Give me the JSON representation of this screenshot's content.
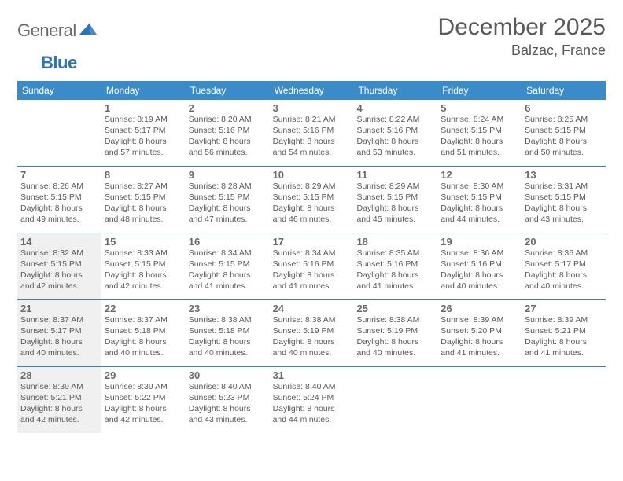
{
  "brand": {
    "part1": "General",
    "part2": "Blue"
  },
  "title": "December 2025",
  "location": "Balzac, France",
  "colors": {
    "header_bg": "#3b8bc8",
    "header_text": "#ffffff",
    "border": "#3b7fb5",
    "shaded": "#f0f0f0",
    "text": "#5a5a5a",
    "daynum": "#6a6a6a",
    "brand_blue": "#2b74b8"
  },
  "day_labels": [
    "Sunday",
    "Monday",
    "Tuesday",
    "Wednesday",
    "Thursday",
    "Friday",
    "Saturday"
  ],
  "weeks": [
    [
      {
        "n": "",
        "shaded": false,
        "sunrise": "",
        "sunset": "",
        "daylight": ""
      },
      {
        "n": "1",
        "shaded": false,
        "sunrise": "Sunrise: 8:19 AM",
        "sunset": "Sunset: 5:17 PM",
        "daylight": "Daylight: 8 hours and 57 minutes."
      },
      {
        "n": "2",
        "shaded": false,
        "sunrise": "Sunrise: 8:20 AM",
        "sunset": "Sunset: 5:16 PM",
        "daylight": "Daylight: 8 hours and 56 minutes."
      },
      {
        "n": "3",
        "shaded": false,
        "sunrise": "Sunrise: 8:21 AM",
        "sunset": "Sunset: 5:16 PM",
        "daylight": "Daylight: 8 hours and 54 minutes."
      },
      {
        "n": "4",
        "shaded": false,
        "sunrise": "Sunrise: 8:22 AM",
        "sunset": "Sunset: 5:16 PM",
        "daylight": "Daylight: 8 hours and 53 minutes."
      },
      {
        "n": "5",
        "shaded": false,
        "sunrise": "Sunrise: 8:24 AM",
        "sunset": "Sunset: 5:15 PM",
        "daylight": "Daylight: 8 hours and 51 minutes."
      },
      {
        "n": "6",
        "shaded": false,
        "sunrise": "Sunrise: 8:25 AM",
        "sunset": "Sunset: 5:15 PM",
        "daylight": "Daylight: 8 hours and 50 minutes."
      }
    ],
    [
      {
        "n": "7",
        "shaded": false,
        "sunrise": "Sunrise: 8:26 AM",
        "sunset": "Sunset: 5:15 PM",
        "daylight": "Daylight: 8 hours and 49 minutes."
      },
      {
        "n": "8",
        "shaded": false,
        "sunrise": "Sunrise: 8:27 AM",
        "sunset": "Sunset: 5:15 PM",
        "daylight": "Daylight: 8 hours and 48 minutes."
      },
      {
        "n": "9",
        "shaded": false,
        "sunrise": "Sunrise: 8:28 AM",
        "sunset": "Sunset: 5:15 PM",
        "daylight": "Daylight: 8 hours and 47 minutes."
      },
      {
        "n": "10",
        "shaded": false,
        "sunrise": "Sunrise: 8:29 AM",
        "sunset": "Sunset: 5:15 PM",
        "daylight": "Daylight: 8 hours and 46 minutes."
      },
      {
        "n": "11",
        "shaded": false,
        "sunrise": "Sunrise: 8:29 AM",
        "sunset": "Sunset: 5:15 PM",
        "daylight": "Daylight: 8 hours and 45 minutes."
      },
      {
        "n": "12",
        "shaded": false,
        "sunrise": "Sunrise: 8:30 AM",
        "sunset": "Sunset: 5:15 PM",
        "daylight": "Daylight: 8 hours and 44 minutes."
      },
      {
        "n": "13",
        "shaded": false,
        "sunrise": "Sunrise: 8:31 AM",
        "sunset": "Sunset: 5:15 PM",
        "daylight": "Daylight: 8 hours and 43 minutes."
      }
    ],
    [
      {
        "n": "14",
        "shaded": true,
        "sunrise": "Sunrise: 8:32 AM",
        "sunset": "Sunset: 5:15 PM",
        "daylight": "Daylight: 8 hours and 42 minutes."
      },
      {
        "n": "15",
        "shaded": false,
        "sunrise": "Sunrise: 8:33 AM",
        "sunset": "Sunset: 5:15 PM",
        "daylight": "Daylight: 8 hours and 42 minutes."
      },
      {
        "n": "16",
        "shaded": false,
        "sunrise": "Sunrise: 8:34 AM",
        "sunset": "Sunset: 5:15 PM",
        "daylight": "Daylight: 8 hours and 41 minutes."
      },
      {
        "n": "17",
        "shaded": false,
        "sunrise": "Sunrise: 8:34 AM",
        "sunset": "Sunset: 5:16 PM",
        "daylight": "Daylight: 8 hours and 41 minutes."
      },
      {
        "n": "18",
        "shaded": false,
        "sunrise": "Sunrise: 8:35 AM",
        "sunset": "Sunset: 5:16 PM",
        "daylight": "Daylight: 8 hours and 41 minutes."
      },
      {
        "n": "19",
        "shaded": false,
        "sunrise": "Sunrise: 8:36 AM",
        "sunset": "Sunset: 5:16 PM",
        "daylight": "Daylight: 8 hours and 40 minutes."
      },
      {
        "n": "20",
        "shaded": false,
        "sunrise": "Sunrise: 8:36 AM",
        "sunset": "Sunset: 5:17 PM",
        "daylight": "Daylight: 8 hours and 40 minutes."
      }
    ],
    [
      {
        "n": "21",
        "shaded": true,
        "sunrise": "Sunrise: 8:37 AM",
        "sunset": "Sunset: 5:17 PM",
        "daylight": "Daylight: 8 hours and 40 minutes."
      },
      {
        "n": "22",
        "shaded": false,
        "sunrise": "Sunrise: 8:37 AM",
        "sunset": "Sunset: 5:18 PM",
        "daylight": "Daylight: 8 hours and 40 minutes."
      },
      {
        "n": "23",
        "shaded": false,
        "sunrise": "Sunrise: 8:38 AM",
        "sunset": "Sunset: 5:18 PM",
        "daylight": "Daylight: 8 hours and 40 minutes."
      },
      {
        "n": "24",
        "shaded": false,
        "sunrise": "Sunrise: 8:38 AM",
        "sunset": "Sunset: 5:19 PM",
        "daylight": "Daylight: 8 hours and 40 minutes."
      },
      {
        "n": "25",
        "shaded": false,
        "sunrise": "Sunrise: 8:38 AM",
        "sunset": "Sunset: 5:19 PM",
        "daylight": "Daylight: 8 hours and 40 minutes."
      },
      {
        "n": "26",
        "shaded": false,
        "sunrise": "Sunrise: 8:39 AM",
        "sunset": "Sunset: 5:20 PM",
        "daylight": "Daylight: 8 hours and 41 minutes."
      },
      {
        "n": "27",
        "shaded": false,
        "sunrise": "Sunrise: 8:39 AM",
        "sunset": "Sunset: 5:21 PM",
        "daylight": "Daylight: 8 hours and 41 minutes."
      }
    ],
    [
      {
        "n": "28",
        "shaded": true,
        "sunrise": "Sunrise: 8:39 AM",
        "sunset": "Sunset: 5:21 PM",
        "daylight": "Daylight: 8 hours and 42 minutes."
      },
      {
        "n": "29",
        "shaded": false,
        "sunrise": "Sunrise: 8:39 AM",
        "sunset": "Sunset: 5:22 PM",
        "daylight": "Daylight: 8 hours and 42 minutes."
      },
      {
        "n": "30",
        "shaded": false,
        "sunrise": "Sunrise: 8:40 AM",
        "sunset": "Sunset: 5:23 PM",
        "daylight": "Daylight: 8 hours and 43 minutes."
      },
      {
        "n": "31",
        "shaded": false,
        "sunrise": "Sunrise: 8:40 AM",
        "sunset": "Sunset: 5:24 PM",
        "daylight": "Daylight: 8 hours and 44 minutes."
      },
      {
        "n": "",
        "shaded": false,
        "sunrise": "",
        "sunset": "",
        "daylight": ""
      },
      {
        "n": "",
        "shaded": false,
        "sunrise": "",
        "sunset": "",
        "daylight": ""
      },
      {
        "n": "",
        "shaded": false,
        "sunrise": "",
        "sunset": "",
        "daylight": ""
      }
    ]
  ]
}
